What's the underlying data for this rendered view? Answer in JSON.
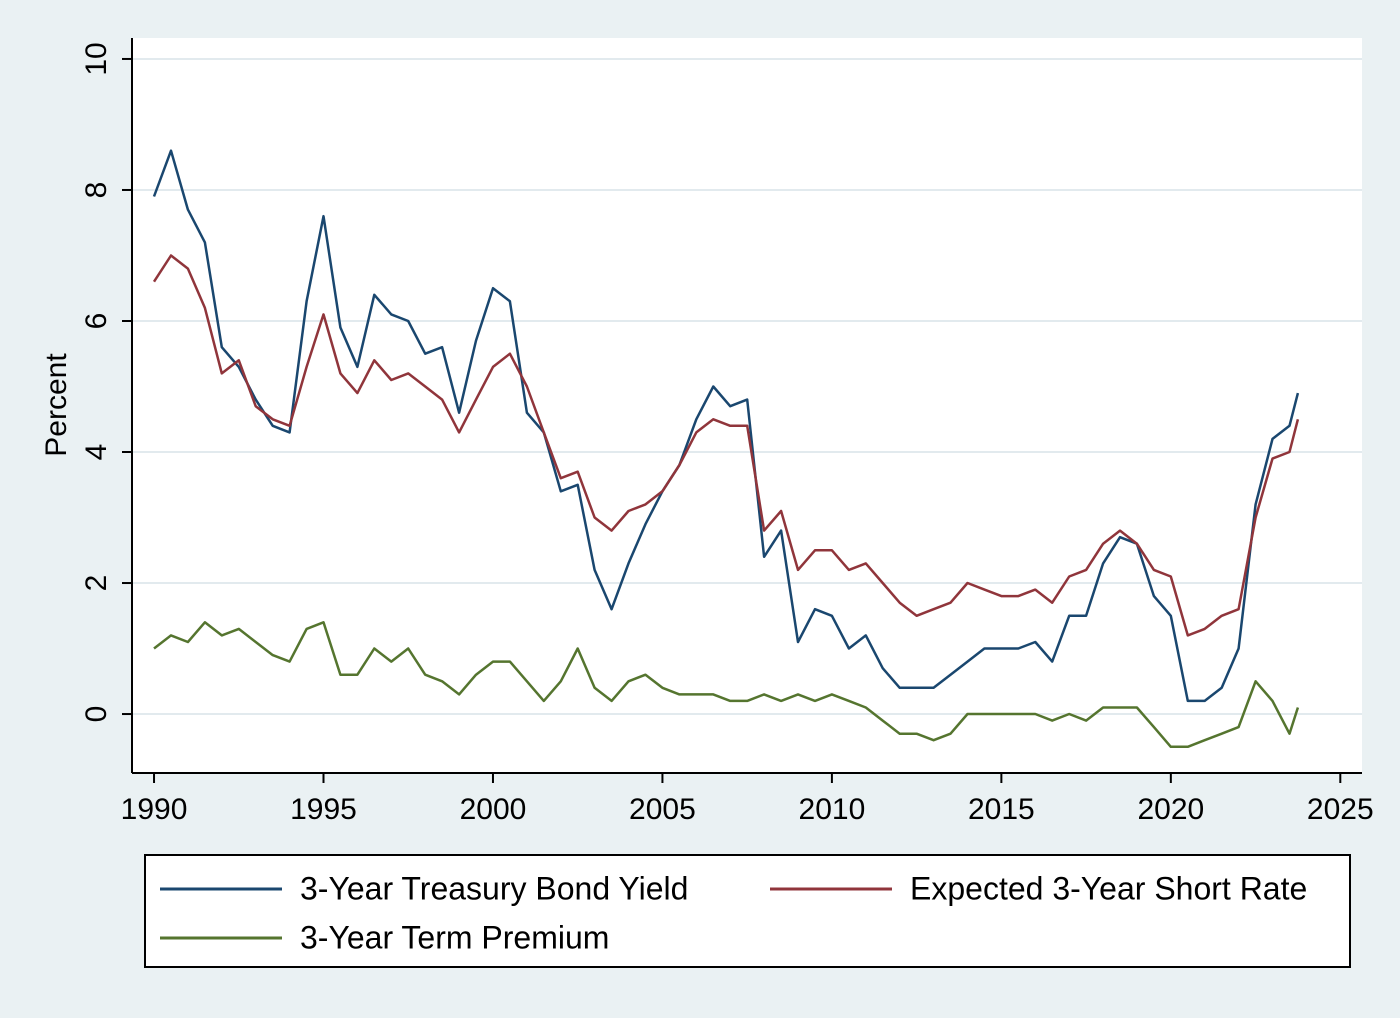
{
  "chart_data": {
    "type": "line",
    "y_label": "Percent",
    "grid": true,
    "legend": "bottom",
    "xlim": [
      1989.35,
      2025.64
    ],
    "ylim": [
      -0.9,
      10.32
    ],
    "xticks": [
      1990,
      1995,
      2000,
      2005,
      2010,
      2015,
      2020,
      2025
    ],
    "yticks": [
      0,
      2,
      4,
      6,
      8,
      10
    ],
    "x": [
      1990,
      1990.5,
      1991,
      1991.5,
      1992,
      1992.5,
      1993,
      1993.5,
      1994,
      1994.5,
      1995,
      1995.5,
      1996,
      1996.5,
      1997,
      1997.5,
      1998,
      1998.5,
      1999,
      1999.5,
      2000,
      2000.5,
      2001,
      2001.5,
      2002,
      2002.5,
      2003,
      2003.5,
      2004,
      2004.5,
      2005,
      2005.5,
      2006,
      2006.5,
      2007,
      2007.5,
      2008,
      2008.5,
      2009,
      2009.5,
      2010,
      2010.5,
      2011,
      2011.5,
      2012,
      2012.5,
      2013,
      2013.5,
      2014,
      2014.5,
      2015,
      2015.5,
      2016,
      2016.5,
      2017,
      2017.5,
      2018,
      2018.5,
      2019,
      2019.5,
      2020,
      2020.5,
      2021,
      2021.5,
      2022,
      2022.5,
      2023,
      2023.5,
      2023.75
    ],
    "series": [
      {
        "name": "3-Year Treasury Bond Yield",
        "color": "#1a476f",
        "values": [
          7.9,
          8.6,
          7.7,
          7.2,
          5.6,
          5.3,
          4.8,
          4.4,
          4.3,
          6.3,
          7.6,
          5.9,
          5.3,
          6.4,
          6.1,
          6.0,
          5.5,
          5.6,
          4.6,
          5.7,
          6.5,
          6.3,
          4.6,
          4.3,
          3.4,
          3.5,
          2.2,
          1.6,
          2.3,
          2.9,
          3.4,
          3.8,
          4.5,
          5.0,
          4.7,
          4.8,
          2.4,
          2.8,
          1.1,
          1.6,
          1.5,
          1.0,
          1.2,
          0.7,
          0.4,
          0.4,
          0.4,
          0.6,
          0.8,
          1.0,
          1.0,
          1.0,
          1.1,
          0.8,
          1.5,
          1.5,
          2.3,
          2.7,
          2.6,
          1.8,
          1.5,
          0.2,
          0.2,
          0.4,
          1.0,
          3.2,
          4.2,
          4.4,
          4.9
        ]
      },
      {
        "name": "Expected 3-Year Short Rate",
        "color": "#90353b",
        "values": [
          6.6,
          7.0,
          6.8,
          6.2,
          5.2,
          5.4,
          4.7,
          4.5,
          4.4,
          5.3,
          6.1,
          5.2,
          4.9,
          5.4,
          5.1,
          5.2,
          5.0,
          4.8,
          4.3,
          4.8,
          5.3,
          5.5,
          5.0,
          4.3,
          3.6,
          3.7,
          3.0,
          2.8,
          3.1,
          3.2,
          3.4,
          3.8,
          4.3,
          4.5,
          4.4,
          4.4,
          2.8,
          3.1,
          2.2,
          2.5,
          2.5,
          2.2,
          2.3,
          2.0,
          1.7,
          1.5,
          1.6,
          1.7,
          2.0,
          1.9,
          1.8,
          1.8,
          1.9,
          1.7,
          2.1,
          2.2,
          2.6,
          2.8,
          2.6,
          2.2,
          2.1,
          1.2,
          1.3,
          1.5,
          1.6,
          3.0,
          3.9,
          4.0,
          4.5
        ]
      },
      {
        "name": "3-Year Term Premium",
        "color": "#55752f",
        "values": [
          1.0,
          1.2,
          1.1,
          1.4,
          1.2,
          1.3,
          1.1,
          0.9,
          0.8,
          1.3,
          1.4,
          0.6,
          0.6,
          1.0,
          0.8,
          1.0,
          0.6,
          0.5,
          0.3,
          0.6,
          0.8,
          0.8,
          0.5,
          0.2,
          0.5,
          1.0,
          0.4,
          0.2,
          0.5,
          0.6,
          0.4,
          0.3,
          0.3,
          0.3,
          0.2,
          0.2,
          0.3,
          0.2,
          0.3,
          0.2,
          0.3,
          0.2,
          0.1,
          -0.1,
          -0.3,
          -0.3,
          -0.4,
          -0.3,
          0.0,
          0.0,
          0.0,
          0.0,
          0.0,
          -0.1,
          0.0,
          -0.1,
          0.1,
          0.1,
          0.1,
          -0.2,
          -0.5,
          -0.5,
          -0.4,
          -0.3,
          -0.2,
          0.5,
          0.2,
          -0.3,
          0.1
        ]
      }
    ]
  }
}
